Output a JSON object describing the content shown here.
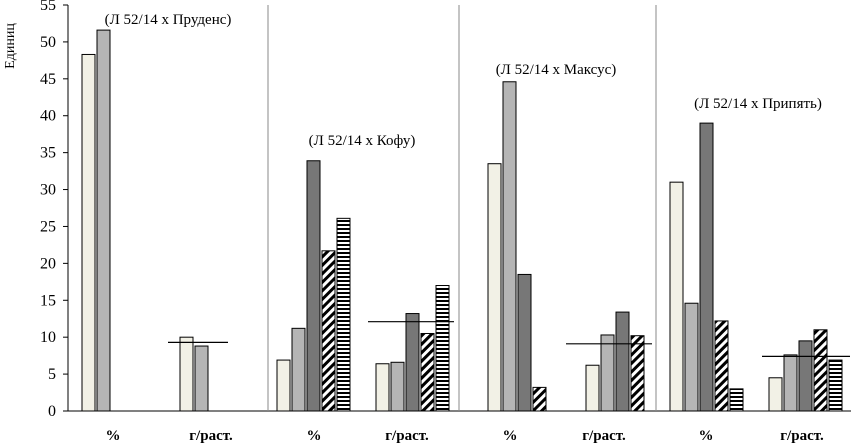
{
  "chart_data": {
    "type": "bar",
    "ylabel": "Единиц",
    "ylim": [
      0,
      55
    ],
    "yticks": [
      0,
      5,
      10,
      15,
      20,
      25,
      30,
      35,
      40,
      45,
      50,
      55
    ],
    "grid": false,
    "bar_styles": [
      "light",
      "medium",
      "dark",
      "diagonal-hatch",
      "horizontal-hatch"
    ],
    "colors": {
      "light": "#f2f1e6",
      "medium": "#b5b5b5",
      "dark": "#777777",
      "outline": "#000000",
      "separator": "#8a8a8a"
    },
    "groups": [
      {
        "label": "(Л 52/14 х Пруденс)",
        "subgroups": [
          {
            "category": "%",
            "values": [
              48.3,
              51.6,
              null,
              null,
              null
            ]
          },
          {
            "category": "г/раст.",
            "values": [
              10.0,
              8.8,
              null,
              null,
              null
            ],
            "mean": 9.3
          }
        ]
      },
      {
        "label": "(Л 52/14 х Кофу)",
        "subgroups": [
          {
            "category": "%",
            "values": [
              6.9,
              11.2,
              33.9,
              21.7,
              26.1
            ]
          },
          {
            "category": "г/раст.",
            "values": [
              6.4,
              6.6,
              13.2,
              10.5,
              17.0
            ],
            "mean": 12.1
          }
        ]
      },
      {
        "label": "(Л 52/14 х Максус)",
        "subgroups": [
          {
            "category": "%",
            "values": [
              33.5,
              44.6,
              18.5,
              3.2,
              null
            ]
          },
          {
            "category": "г/раст.",
            "values": [
              6.2,
              10.3,
              13.4,
              10.2,
              null
            ],
            "mean": 9.1
          }
        ]
      },
      {
        "label": "(Л 52/14 х Припять)",
        "subgroups": [
          {
            "category": "%",
            "values": [
              31.0,
              14.6,
              39.0,
              12.2,
              3.0
            ]
          },
          {
            "category": "г/раст.",
            "values": [
              4.5,
              7.6,
              9.5,
              11.0,
              6.9
            ],
            "mean": 7.4
          }
        ]
      }
    ]
  }
}
